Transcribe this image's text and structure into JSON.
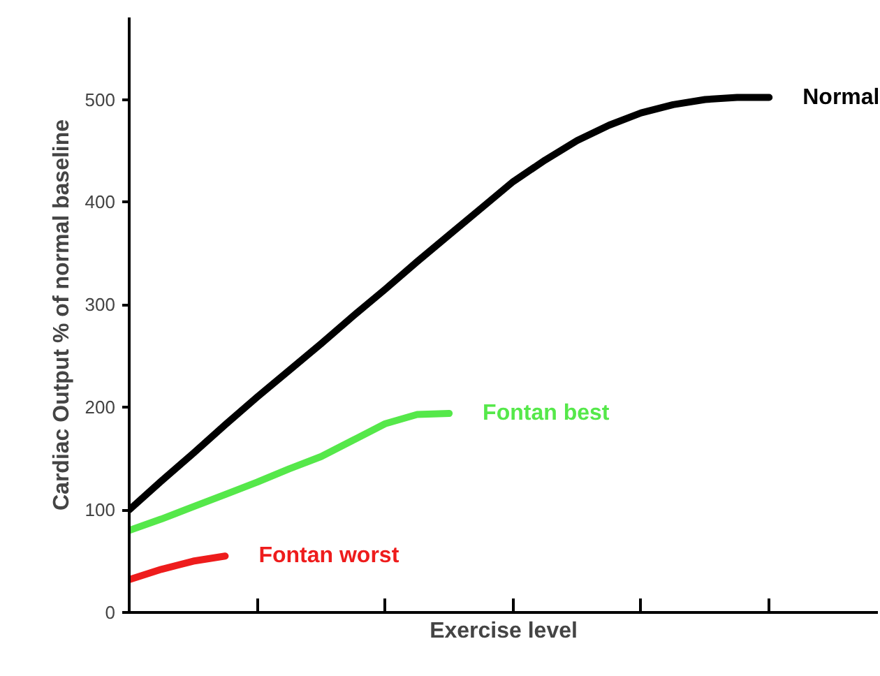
{
  "chart_data": {
    "type": "line",
    "xlabel": "Exercise level",
    "ylabel": "Cardiac Output % of normal baseline",
    "categories": [
      null,
      null,
      null,
      null,
      null,
      null,
      null,
      null,
      null,
      null,
      null,
      null,
      null,
      null,
      null,
      null,
      null,
      null,
      null,
      null,
      null
    ],
    "ylim": [
      0,
      580
    ],
    "yticks": [
      0,
      100,
      200,
      300,
      400,
      500
    ],
    "grid": false,
    "marker": "none",
    "line_style": "solid",
    "series": [
      {
        "name": "Normal",
        "color": "#000000",
        "values": [
          100,
          128,
          155,
          183,
          210,
          236,
          262,
          289,
          315,
          342,
          368,
          394,
          420,
          441,
          460,
          475,
          487,
          495,
          500,
          502,
          502
        ]
      },
      {
        "name": "Fontan best",
        "color": "#55e84a",
        "values": [
          80,
          91,
          103,
          115,
          127,
          140,
          152,
          168,
          184,
          193,
          194,
          null,
          null,
          null,
          null,
          null,
          null,
          null,
          null,
          null,
          null
        ]
      },
      {
        "name": "Fontan worst",
        "color": "#ee1c1c",
        "values": [
          32,
          42,
          50,
          55,
          null,
          null,
          null,
          null,
          null,
          null,
          null,
          null,
          null,
          null,
          null,
          null,
          null,
          null,
          null,
          null,
          null
        ]
      }
    ]
  }
}
